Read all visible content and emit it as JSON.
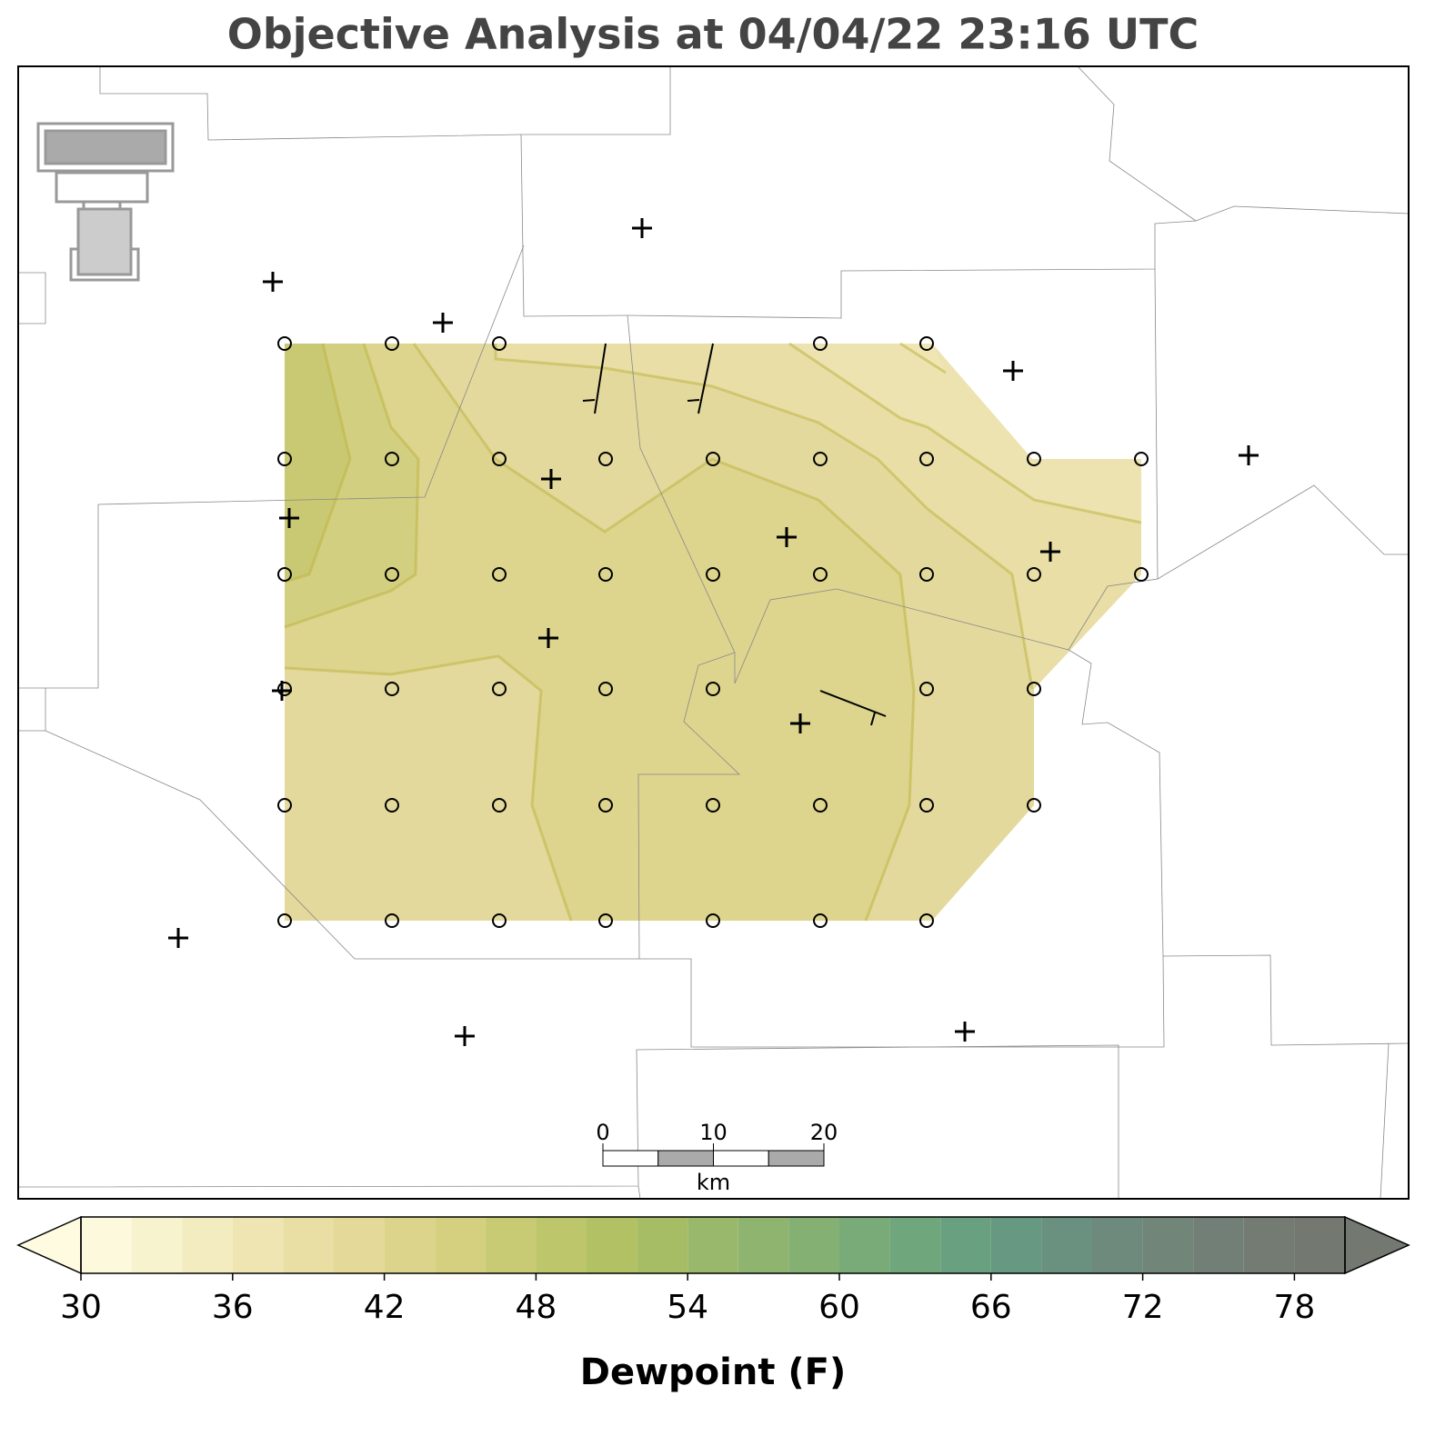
{
  "title": "Objective Analysis at 04/04/22 23:16 UTC",
  "colorbar": {
    "label": "Dewpoint (F)",
    "lim": [
      30,
      80
    ],
    "levels": [
      30,
      32,
      34,
      36,
      38,
      40,
      42,
      44,
      46,
      48,
      50,
      52,
      54,
      56,
      58,
      60,
      62,
      64,
      66,
      68,
      70,
      72,
      74,
      76,
      78,
      80
    ],
    "colors": [
      "#fdf9dc",
      "#f8f3cf",
      "#f3ecc0",
      "#eee5b2",
      "#e9dfa5",
      "#e4d998",
      "#dcd48b",
      "#d4d07f",
      "#c9cb74",
      "#bdc66a",
      "#b1c163",
      "#a6bd66",
      "#9ab86b",
      "#8fb470",
      "#84b074",
      "#79ab78",
      "#70a67b",
      "#69a07f",
      "#679881",
      "#6a907f",
      "#6e8a7d",
      "#718579",
      "#727f76",
      "#737b73",
      "#737870"
    ],
    "under_color": "#fffbe0",
    "over_color": "#737870",
    "ticks": [
      30,
      36,
      42,
      48,
      54,
      60,
      66,
      72,
      78
    ]
  },
  "scale_bar": {
    "ticks": [
      0,
      10,
      20
    ],
    "unit": "km"
  }
}
